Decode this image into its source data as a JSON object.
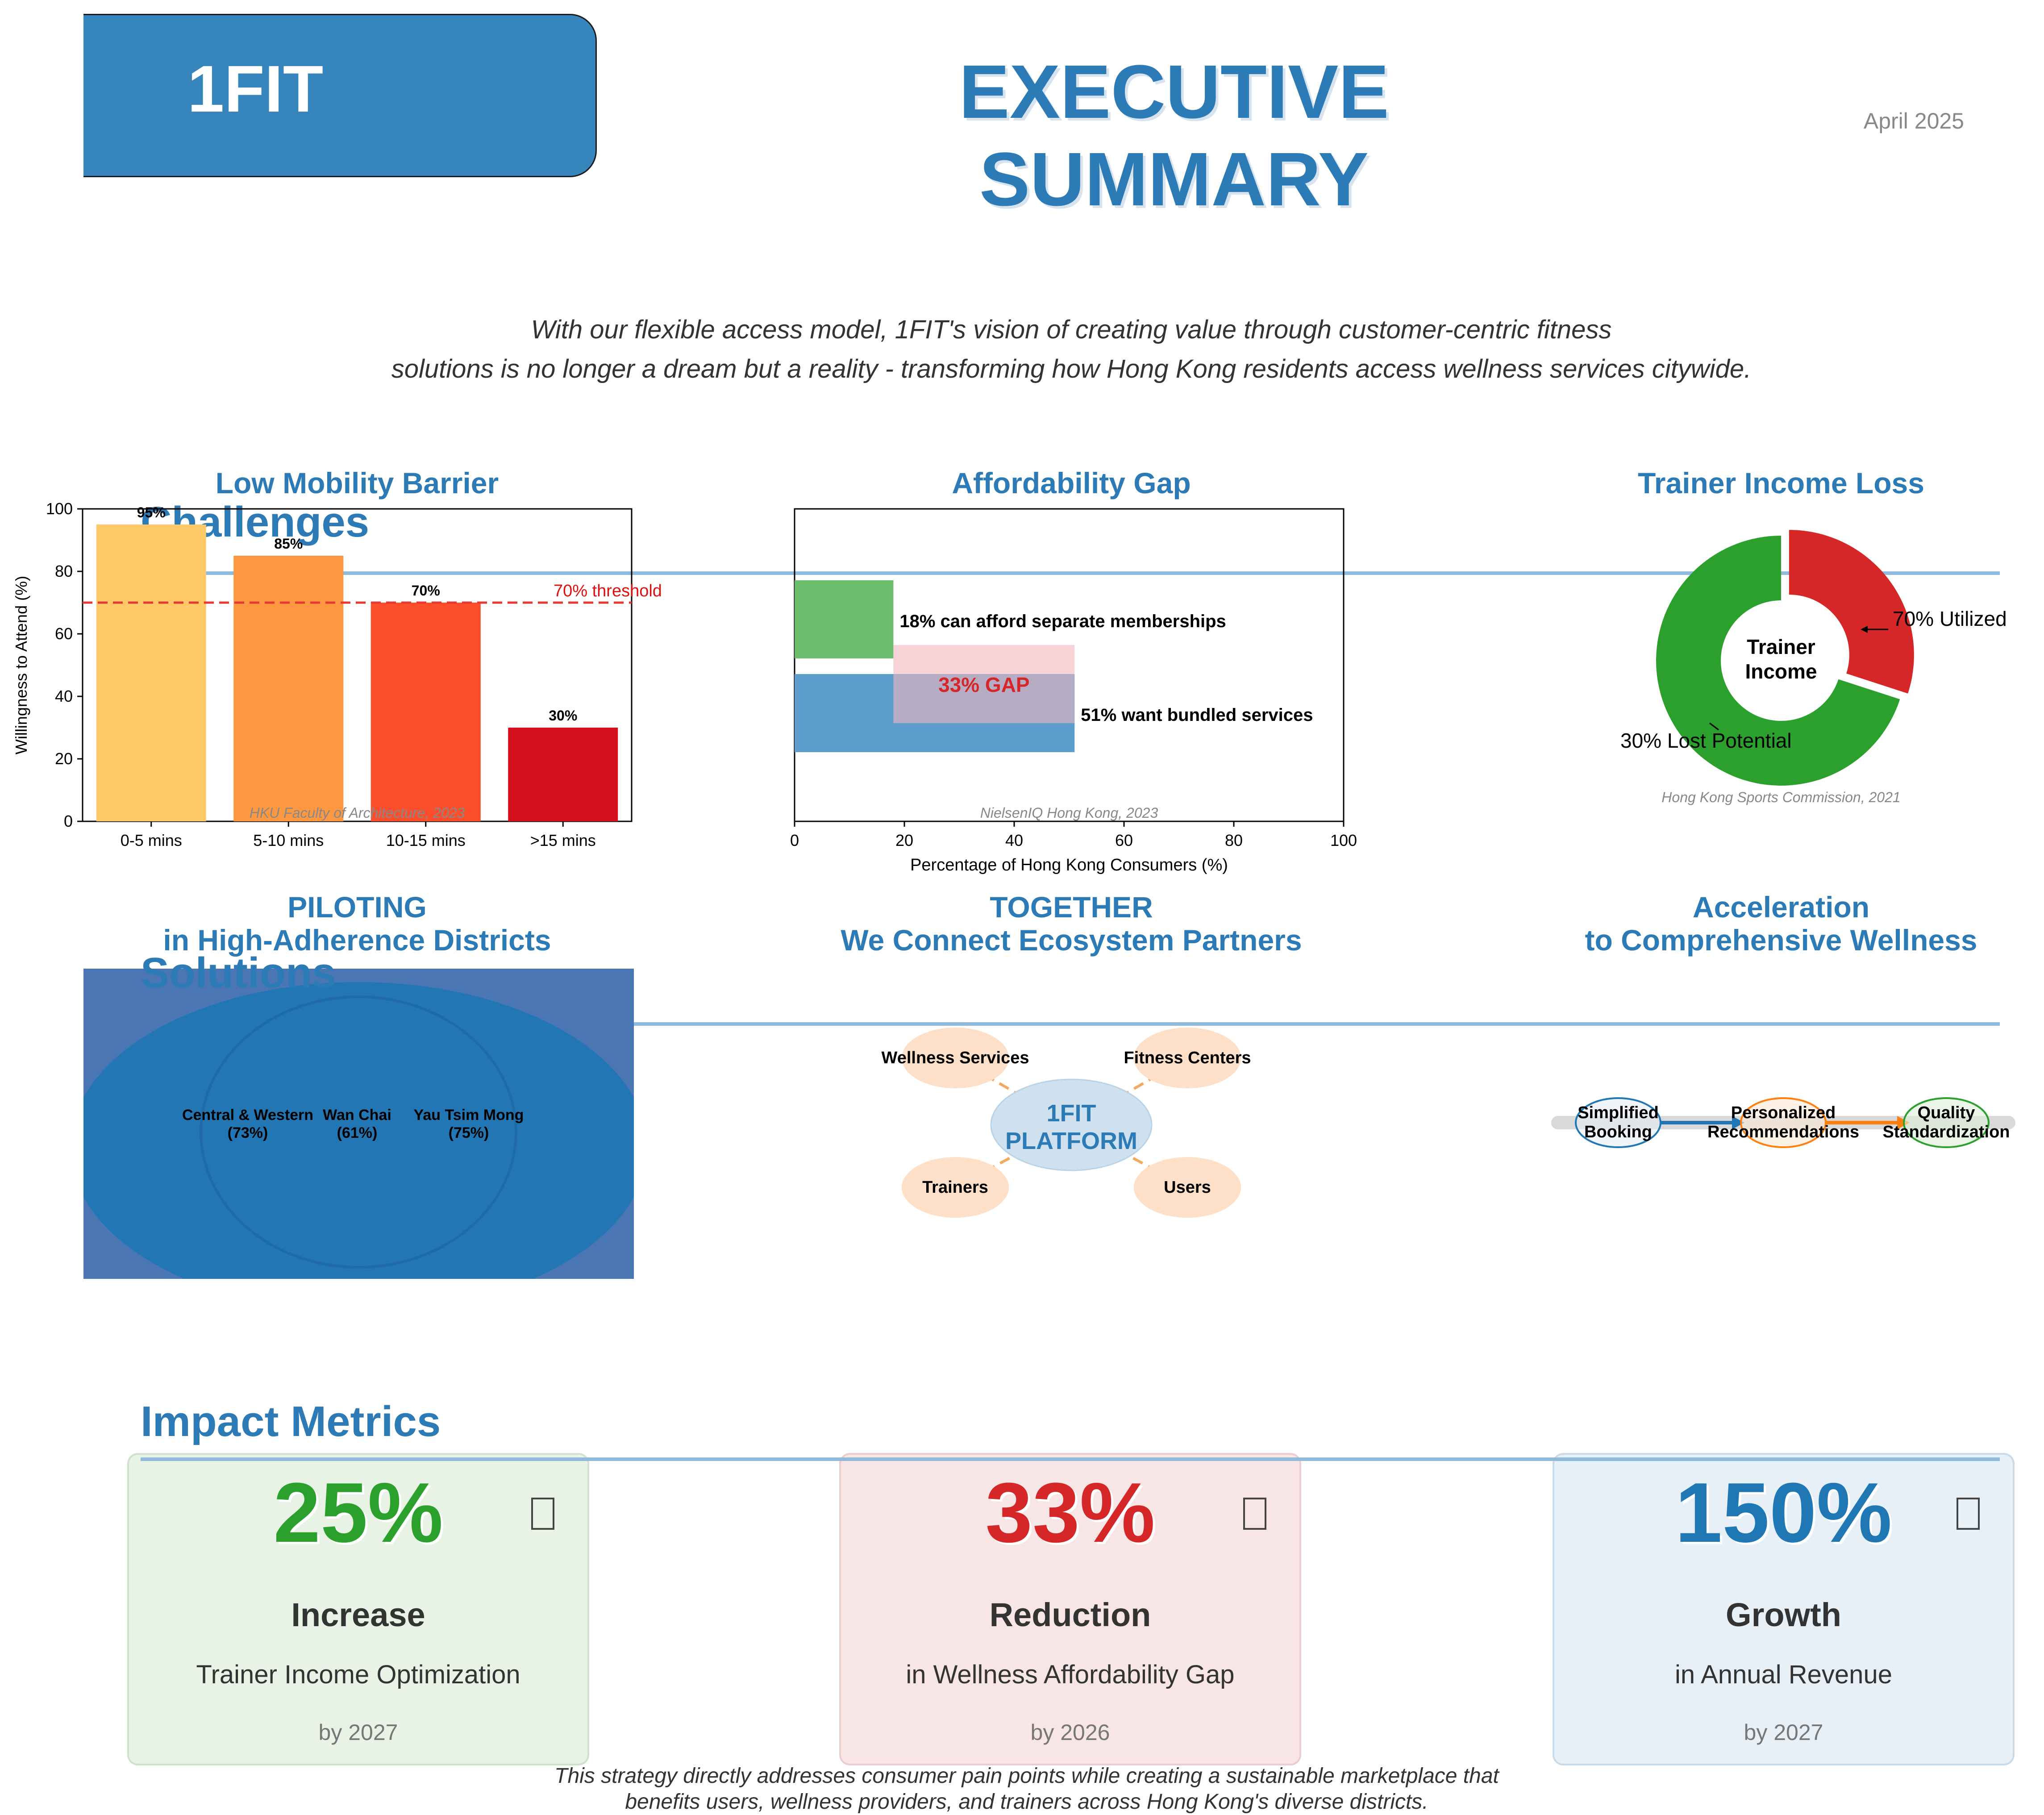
{
  "header": {
    "logo": "1FIT",
    "title": "EXECUTIVE SUMMARY",
    "date": "April 2025",
    "vision_line1": "With our flexible access model, 1FIT's vision of creating value through customer-centric fitness",
    "vision_line2": "solutions is no longer a dream but a reality - transforming how Hong Kong residents access wellness services citywide."
  },
  "sections": {
    "challenges_overlay": "Challenges",
    "solutions_overlay": "Solutions",
    "impact_heading": "Impact Metrics"
  },
  "chart_data": [
    {
      "type": "bar",
      "title": "Low Mobility Barrier",
      "categories": [
        "0-5 mins",
        "5-10 mins",
        "10-15 mins",
        ">15 mins"
      ],
      "values": [
        95,
        85,
        70,
        30
      ],
      "value_labels": [
        "95%",
        "85%",
        "70%",
        "30%"
      ],
      "colors": [
        "#fec966",
        "#fd9840",
        "#fc4e2a",
        "#d4101f"
      ],
      "ylabel": "Willingness to Attend (%)",
      "ylim": [
        0,
        100
      ],
      "yticks": [
        0,
        20,
        40,
        60,
        80,
        100
      ],
      "threshold": {
        "value": 70,
        "label": "70% threshold",
        "color": "#e53935"
      },
      "source": "HKU Faculty of Architecture, 2023"
    },
    {
      "type": "bar",
      "orientation": "horizontal",
      "title": "Affordability Gap",
      "bars": [
        {
          "value": 18,
          "label": "18% can afford separate memberships",
          "color": "#6bbd6b"
        },
        {
          "value": 51,
          "label": "51% want bundled services",
          "color": "#5e9ecd"
        }
      ],
      "gap": {
        "from": 18,
        "to": 51,
        "label": "33% GAP",
        "color": "#f1b6bd"
      },
      "xlabel": "Percentage of Hong Kong Consumers (%)",
      "xlim": [
        0,
        100
      ],
      "xticks": [
        0,
        20,
        40,
        60,
        80,
        100
      ],
      "source": "NielsenIQ Hong Kong, 2023"
    },
    {
      "type": "pie",
      "title": "Trainer Income Loss",
      "center_label": [
        "Trainer",
        "Income"
      ],
      "slices": [
        {
          "value": 70,
          "label": "70% Utilized",
          "color": "#2ca02c"
        },
        {
          "value": 30,
          "label": "30% Lost Potential",
          "color": "#d62728"
        }
      ],
      "source": "Hong Kong Sports Commission, 2021"
    }
  ],
  "solutions": {
    "piloting": {
      "title_line1": "PILOTING",
      "title_line2": "in High-Adherence Districts",
      "districts": [
        {
          "name": "Central & Western",
          "pct": "(73%)"
        },
        {
          "name": "Wan Chai",
          "pct": "(61%)"
        },
        {
          "name": "Yau Tsim Mong",
          "pct": "(75%)"
        }
      ]
    },
    "together": {
      "title_line1": "TOGETHER",
      "title_line2": "We Connect Ecosystem Partners",
      "center_line1": "1FIT",
      "center_line2": "PLATFORM",
      "partners": [
        "Wellness Services",
        "Fitness Centers",
        "Trainers",
        "Users"
      ]
    },
    "acceleration": {
      "title_line1": "Acceleration",
      "title_line2": "to Comprehensive Wellness",
      "steps": [
        {
          "line1": "Simplified",
          "line2": "Booking",
          "color": "#1f77b4"
        },
        {
          "line1": "Personalized",
          "line2": "Recommendations",
          "color": "#ff7f0e"
        },
        {
          "line1": "Quality",
          "line2": "Standardization",
          "color": "#2ca02c"
        }
      ]
    }
  },
  "metrics": [
    {
      "value": "25%",
      "label": "Increase",
      "desc": "Trainer Income Optimization",
      "by": "by 2027",
      "color": "#2ca02c",
      "bg": "#e8f3e6",
      "border": "#cfe3cb",
      "icon": "money-icon"
    },
    {
      "value": "33%",
      "label": "Reduction",
      "desc": "in Wellness Affordability Gap",
      "by": "by 2026",
      "color": "#d62728",
      "bg": "#f8e6e6",
      "border": "#edcccd",
      "icon": "scale-icon"
    },
    {
      "value": "150%",
      "label": "Growth",
      "desc": "in Annual Revenue",
      "by": "by 2027",
      "color": "#1f77b4",
      "bg": "#e7eff7",
      "border": "#c9dbe9",
      "icon": "chart-up-icon"
    }
  ],
  "footer": {
    "line1": "This strategy directly addresses consumer pain points while creating a sustainable marketplace that",
    "line2": "benefits users, wellness providers, and trainers across Hong Kong's diverse districts."
  }
}
